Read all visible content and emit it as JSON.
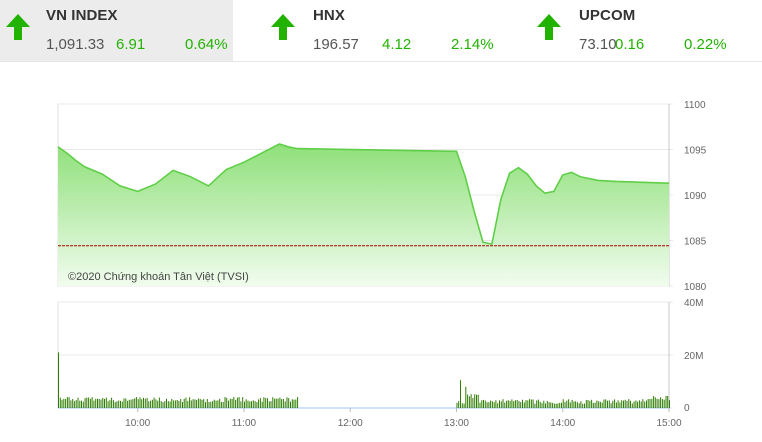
{
  "tickers": [
    {
      "name": "VN INDEX",
      "value": "1,091.33",
      "change": "6.91",
      "percent": "0.64%",
      "direction": "up"
    },
    {
      "name": "HNX",
      "value": "196.57",
      "change": "4.12",
      "percent": "2.14%",
      "direction": "up"
    },
    {
      "name": "UPCOM",
      "value": "73.10",
      "change": "0.16",
      "percent": "0.22%",
      "direction": "up"
    }
  ],
  "colors": {
    "up": "#21b300",
    "area_top": "#8fe07a",
    "area_bottom": "#f1fcee",
    "reference": "#b00000",
    "volume": "#2e7d00"
  },
  "chart_data": {
    "type": "area",
    "credit": "©2020 Chứng khoán Tân Việt (TVSI)",
    "price": {
      "yticks": [
        "1100",
        "1095",
        "1090",
        "1085",
        "1080"
      ],
      "ylim": [
        1080,
        1100
      ],
      "reference": 1084.42,
      "x": [
        "9:15",
        "9:20",
        "9:25",
        "9:30",
        "9:40",
        "9:50",
        "10:00",
        "10:10",
        "10:20",
        "10:30",
        "10:40",
        "10:50",
        "11:00",
        "11:10",
        "11:20",
        "11:25",
        "11:30",
        "13:00",
        "13:05",
        "13:10",
        "13:15",
        "13:20",
        "13:25",
        "13:30",
        "13:35",
        "13:40",
        "13:45",
        "13:50",
        "13:55",
        "14:00",
        "14:05",
        "14:10",
        "14:20",
        "14:30",
        "14:45",
        "15:00"
      ],
      "values": [
        1095.3,
        1094.6,
        1093.8,
        1093.1,
        1092.3,
        1091.0,
        1090.4,
        1091.2,
        1092.7,
        1092.0,
        1091.0,
        1092.8,
        1093.6,
        1094.6,
        1095.6,
        1095.3,
        1095.1,
        1094.8,
        1092.0,
        1088.2,
        1084.8,
        1084.6,
        1089.5,
        1092.4,
        1093.0,
        1092.3,
        1091.0,
        1090.2,
        1090.4,
        1092.2,
        1092.5,
        1092.0,
        1091.6,
        1091.5,
        1091.4,
        1091.3
      ]
    },
    "volume": {
      "yticks": [
        "40M",
        "20M",
        "0"
      ],
      "ylim": [
        0,
        40
      ],
      "unit": "M"
    },
    "xticks": [
      "10:00",
      "11:00",
      "12:00",
      "13:00",
      "14:00",
      "15:00"
    ]
  }
}
